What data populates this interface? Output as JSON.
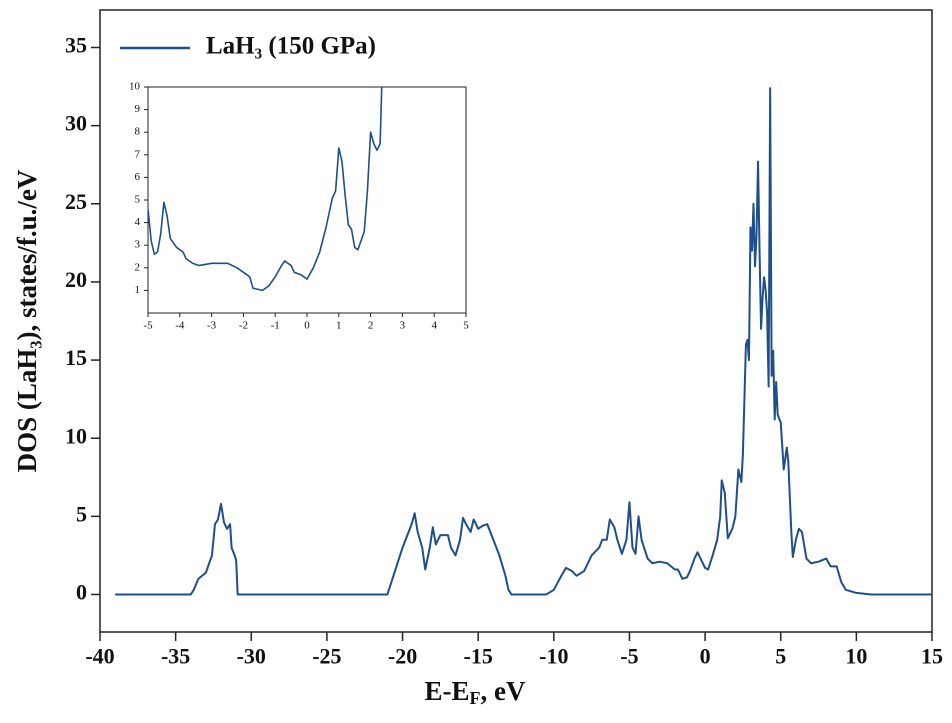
{
  "chart_data": [
    {
      "type": "line",
      "xlabel": [
        "E-E",
        "F",
        ", eV"
      ],
      "ylabel": "DOS (LaH₃), states/f.u./eV",
      "xlim": [
        -40,
        15
      ],
      "xticks": [
        -40,
        -35,
        -30,
        -25,
        -20,
        -15,
        -10,
        -5,
        0,
        5,
        10,
        15
      ],
      "ylim": [
        -2.4,
        37.4
      ],
      "yticks": [
        0,
        5,
        10,
        15,
        20,
        25,
        30,
        35
      ],
      "legend": "upper left",
      "x": [
        -39,
        -34,
        -33.8,
        -33.5,
        -33,
        -32.6,
        -32.4,
        -32.2,
        -32,
        -31.8,
        -31.6,
        -31.4,
        -31.3,
        -31.1,
        -31,
        -30.9,
        -21,
        -20.5,
        -20,
        -19.6,
        -19.4,
        -19.2,
        -19,
        -18.7,
        -18.5,
        -18.2,
        -18,
        -17.8,
        -17.5,
        -17,
        -16.8,
        -16.5,
        -16.2,
        -16,
        -15.8,
        -15.5,
        -15.3,
        -15,
        -14.7,
        -14.4,
        -14,
        -13.6,
        -13.2,
        -13,
        -12.8,
        -10.5,
        -10,
        -9.5,
        -9.2,
        -8.8,
        -8.5,
        -8,
        -7.5,
        -7,
        -6.8,
        -6.5,
        -6.3,
        -6,
        -5.8,
        -5.5,
        -5.2,
        -5,
        -4.8,
        -4.6,
        -4.4,
        -4.2,
        -3.8,
        -3.5,
        -3,
        -2.5,
        -2,
        -1.8,
        -1.5,
        -1.2,
        -1,
        -0.7,
        -0.5,
        -0.3,
        0,
        0.2,
        0.5,
        0.8,
        1,
        1.1,
        1.3,
        1.5,
        1.8,
        2,
        2.2,
        2.4,
        2.5,
        2.7,
        2.8,
        2.9,
        3,
        3.1,
        3.2,
        3.3,
        3.4,
        3.5,
        3.6,
        3.7,
        3.8,
        3.9,
        4,
        4.1,
        4.2,
        4.3,
        4.4,
        4.5,
        4.6,
        4.7,
        4.8,
        5,
        5.2,
        5.4,
        5.5,
        5.7,
        5.8,
        6,
        6.2,
        6.4,
        6.7,
        7,
        7.5,
        8,
        8.3,
        8.7,
        9,
        9.3,
        10,
        11,
        15
      ],
      "series": [
        {
          "name": "LaH₃ (150 GPa)",
          "color": "#1f4e8c",
          "values": [
            0,
            0,
            0.3,
            1.0,
            1.4,
            2.5,
            4.5,
            4.8,
            5.8,
            4.6,
            4.2,
            4.5,
            3,
            2.5,
            2.2,
            0,
            0,
            1.5,
            3,
            4,
            4.5,
            5.2,
            4,
            3,
            1.6,
            3,
            4.3,
            3.2,
            3.8,
            3.8,
            3,
            2.5,
            3.5,
            4.9,
            4.5,
            4.0,
            4.8,
            4.2,
            4.4,
            4.5,
            3.5,
            2.5,
            1.2,
            0.3,
            0,
            0,
            0.3,
            1.2,
            1.7,
            1.5,
            1.2,
            1.5,
            2.5,
            3,
            3.5,
            3.5,
            4.8,
            4.3,
            3.5,
            2.6,
            3.5,
            5.9,
            3,
            2.6,
            5.0,
            3.5,
            2.3,
            2.0,
            2.1,
            2.0,
            1.6,
            1.6,
            1.0,
            1.1,
            1.5,
            2.3,
            2.7,
            2.3,
            1.7,
            1.6,
            2.5,
            3.5,
            5,
            7.3,
            6.5,
            3.6,
            4.2,
            5,
            8,
            7.2,
            9,
            16,
            16.3,
            15,
            23.5,
            22,
            25,
            21,
            23,
            27.7,
            22,
            17,
            19,
            20.3,
            19.5,
            18,
            13.3,
            32.4,
            14,
            15.6,
            11.2,
            13.6,
            11.5,
            11,
            8,
            9.4,
            8.5,
            4,
            2.4,
            3.5,
            4.2,
            4,
            2.3,
            2.0,
            2.1,
            2.3,
            1.8,
            1.8,
            0.8,
            0.3,
            0.1,
            0,
            0
          ]
        }
      ]
    },
    {
      "type": "line",
      "xlim": [
        -5,
        5
      ],
      "xticks": [
        -5,
        -4,
        -3,
        -2,
        -1,
        0,
        1,
        2,
        3,
        4,
        5
      ],
      "ylim": [
        0,
        10
      ],
      "yticks": [
        1,
        2,
        3,
        4,
        5,
        6,
        7,
        8,
        9,
        10
      ],
      "color": "#1f4e8c",
      "x": [
        -5,
        -4.9,
        -4.8,
        -4.7,
        -4.6,
        -4.5,
        -4.4,
        -4.3,
        -4.1,
        -3.9,
        -3.8,
        -3.6,
        -3.4,
        -3,
        -2.5,
        -2.2,
        -2,
        -1.9,
        -1.8,
        -1.7,
        -1.4,
        -1.2,
        -1,
        -0.8,
        -0.7,
        -0.5,
        -0.4,
        -0.2,
        0,
        0.2,
        0.4,
        0.6,
        0.8,
        0.9,
        1,
        1.1,
        1.2,
        1.3,
        1.4,
        1.5,
        1.6,
        1.7,
        1.8,
        1.9,
        2,
        2.1,
        2.2,
        2.3,
        2.35
      ],
      "values": [
        4.6,
        3.2,
        2.6,
        2.7,
        3.5,
        4.9,
        4.3,
        3.3,
        2.9,
        2.7,
        2.4,
        2.2,
        2.1,
        2.2,
        2.2,
        2.0,
        1.8,
        1.7,
        1.6,
        1.1,
        1.0,
        1.2,
        1.6,
        2.1,
        2.3,
        2.1,
        1.8,
        1.7,
        1.5,
        2.0,
        2.7,
        3.8,
        5.1,
        5.4,
        7.3,
        6.7,
        5.2,
        3.9,
        3.7,
        2.9,
        2.8,
        3.2,
        3.6,
        5.4,
        8.0,
        7.5,
        7.2,
        7.5,
        10
      ]
    }
  ]
}
